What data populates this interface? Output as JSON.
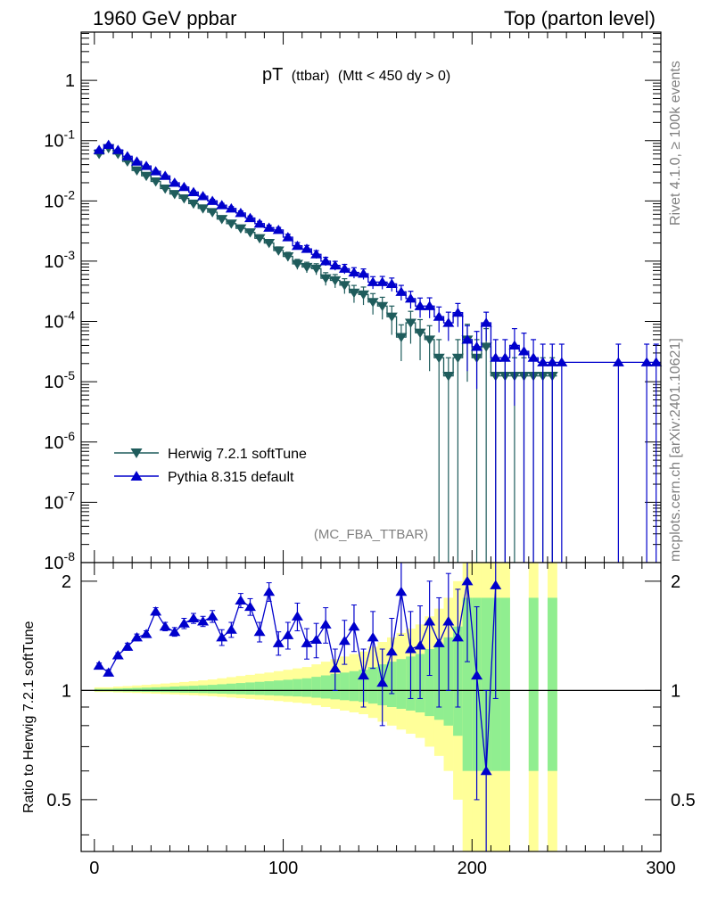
{
  "header": {
    "left": "1960 GeV ppbar",
    "right": "Top (parton level)"
  },
  "side_labels": {
    "rivet": "Rivet 4.1.0, ≥ 100k events",
    "mcplots": "mcplots.cern.ch [arXiv:2401.10621]"
  },
  "chart_data": [
    {
      "type": "line",
      "title": "pT",
      "title_sub": "(ttbar)",
      "title_cut": "(Mtt < 450 dy > 0)",
      "analysis": "(MC_FBA_TTBAR)",
      "xlim": [
        -7,
        300
      ],
      "ylim_log10": [
        -8,
        0.8
      ],
      "y_scale": "log",
      "y_tick_labels": [
        "1",
        "10",
        "10",
        "10",
        "10",
        "10",
        "10",
        "10",
        "10"
      ],
      "y_tick_exponents": [
        "",
        "-1",
        "-2",
        "-3",
        "-4",
        "-5",
        "-6",
        "-7",
        "-8"
      ],
      "legend_position": "middle-left",
      "series": [
        {
          "name": "Herwig 7.2.1 softTune",
          "color": "#1f5c5c",
          "marker": "triangle-down",
          "x": [
            2.5,
            7.5,
            12.5,
            17.5,
            22.5,
            27.5,
            32.5,
            37.5,
            42.5,
            47.5,
            52.5,
            57.5,
            62.5,
            67.5,
            72.5,
            77.5,
            82.5,
            87.5,
            92.5,
            97.5,
            102.5,
            107.5,
            112.5,
            117.5,
            122.5,
            127.5,
            132.5,
            137.5,
            142.5,
            147.5,
            152.5,
            157.5,
            162.5,
            167.5,
            172.5,
            177.5,
            182.5,
            187.5,
            192.5,
            197.5,
            202.5,
            207.5,
            212.5,
            217.5,
            222.5,
            227.5,
            232.5,
            237.5,
            242.5
          ],
          "y": [
            0.06,
            0.075,
            0.06,
            0.045,
            0.032,
            0.026,
            0.021,
            0.016,
            0.013,
            0.011,
            0.009,
            0.0075,
            0.0065,
            0.005,
            0.0042,
            0.0035,
            0.003,
            0.0024,
            0.002,
            0.0015,
            0.0012,
            0.0009,
            0.0008,
            0.00075,
            0.00052,
            0.00048,
            0.0004,
            0.0003,
            0.00028,
            0.00021,
            0.00018,
            0.00012,
            5.5e-05,
            9.5e-05,
            6.5e-05,
            5e-05,
            2.5e-05,
            1.25e-05,
            2.5e-05,
            5e-05,
            2.5e-05,
            3.8e-05,
            1.25e-05,
            1.25e-05,
            1.25e-05,
            1.25e-05,
            1.25e-05,
            1.25e-05,
            1.25e-05
          ],
          "yerr_rel": [
            0.03,
            0.03,
            0.03,
            0.04,
            0.04,
            0.05,
            0.05,
            0.06,
            0.06,
            0.07,
            0.07,
            0.08,
            0.09,
            0.1,
            0.1,
            0.11,
            0.12,
            0.13,
            0.14,
            0.15,
            0.17,
            0.19,
            0.2,
            0.21,
            0.24,
            0.25,
            0.28,
            0.32,
            0.33,
            0.38,
            0.4,
            0.5,
            0.6,
            0.55,
            0.65,
            0.7,
            1,
            1,
            1,
            0.8,
            1,
            1,
            1,
            1,
            1,
            1,
            1,
            1,
            1
          ],
          "line_extends_to": 245
        },
        {
          "name": "Pythia 8.315 default",
          "color": "#0000cc",
          "marker": "triangle-up",
          "x": [
            2.5,
            7.5,
            12.5,
            17.5,
            22.5,
            27.5,
            32.5,
            37.5,
            42.5,
            47.5,
            52.5,
            57.5,
            62.5,
            67.5,
            72.5,
            77.5,
            82.5,
            87.5,
            92.5,
            97.5,
            102.5,
            107.5,
            112.5,
            117.5,
            122.5,
            127.5,
            132.5,
            137.5,
            142.5,
            147.5,
            152.5,
            157.5,
            162.5,
            167.5,
            172.5,
            177.5,
            182.5,
            187.5,
            192.5,
            197.5,
            202.5,
            207.5,
            212.5,
            217.5,
            222.5,
            227.5,
            232.5,
            237.5,
            242.5,
            247.5,
            277.5,
            292.5,
            297.5
          ],
          "y": [
            0.07,
            0.085,
            0.07,
            0.055,
            0.045,
            0.038,
            0.031,
            0.026,
            0.02,
            0.017,
            0.014,
            0.012,
            0.01,
            0.0085,
            0.0075,
            0.0063,
            0.0052,
            0.0042,
            0.0036,
            0.0033,
            0.0025,
            0.0018,
            0.0016,
            0.0013,
            0.001,
            0.00085,
            0.00075,
            0.00065,
            0.00062,
            0.00045,
            0.00045,
            0.00042,
            0.00031,
            0.00024,
            0.00018,
            0.00018,
            0.00012,
            9.5e-05,
            0.00014,
            5e-05,
            3.8e-05,
            9.5e-05,
            2.5e-05,
            2.5e-05,
            4e-05,
            3.2e-05,
            2.5e-05,
            2.1e-05,
            2.1e-05,
            2.1e-05,
            2.1e-05,
            2.1e-05,
            2.1e-05
          ],
          "yerr_rel": [
            0.03,
            0.03,
            0.03,
            0.03,
            0.03,
            0.04,
            0.04,
            0.04,
            0.05,
            0.05,
            0.05,
            0.06,
            0.06,
            0.07,
            0.07,
            0.08,
            0.08,
            0.09,
            0.1,
            0.1,
            0.12,
            0.13,
            0.14,
            0.15,
            0.16,
            0.17,
            0.18,
            0.2,
            0.2,
            0.23,
            0.24,
            0.25,
            0.28,
            0.32,
            0.36,
            0.37,
            0.45,
            0.5,
            0.42,
            0.7,
            0.8,
            0.5,
            1,
            1,
            0.9,
            1,
            1,
            1,
            1,
            1,
            1,
            1,
            1
          ],
          "line_extends_to": 300
        }
      ]
    },
    {
      "type": "line",
      "ylabel": "Ratio to Herwig 7.2.1 softTune",
      "xlim": [
        -7,
        300
      ],
      "ylim": [
        0.36,
        2.25
      ],
      "y_scale": "log",
      "x_ticks": [
        0,
        100,
        200,
        300
      ],
      "y_ticks": [
        0.5,
        1,
        2
      ],
      "y_tick_labels": [
        "0.5",
        "1",
        "2"
      ],
      "reference_line": 1,
      "band_1sigma_color": "#90ee90",
      "band_2sigma_color": "#ffff99",
      "band_x": [
        0,
        5,
        10,
        15,
        20,
        25,
        30,
        35,
        40,
        45,
        50,
        55,
        60,
        65,
        70,
        75,
        80,
        85,
        90,
        95,
        100,
        105,
        110,
        115,
        120,
        125,
        130,
        135,
        140,
        145,
        150,
        155,
        160,
        165,
        170,
        175,
        180,
        185,
        190,
        195,
        200,
        205,
        210,
        215,
        220,
        225,
        230,
        235,
        240,
        245
      ],
      "band_1sigma_rel": [
        0.01,
        0.01,
        0.012,
        0.014,
        0.016,
        0.018,
        0.02,
        0.022,
        0.025,
        0.028,
        0.03,
        0.033,
        0.036,
        0.04,
        0.044,
        0.048,
        0.052,
        0.056,
        0.06,
        0.065,
        0.07,
        0.075,
        0.08,
        0.09,
        0.1,
        0.11,
        0.12,
        0.13,
        0.14,
        0.16,
        0.18,
        0.2,
        0.22,
        0.24,
        0.26,
        0.3,
        0.34,
        0.4,
        0.5,
        0.8,
        0.8,
        0.8,
        0.8,
        0.8,
        0,
        0,
        0.8,
        0,
        0.8,
        0
      ],
      "band_2sigma_rel": [
        0.02,
        0.02,
        0.025,
        0.028,
        0.032,
        0.036,
        0.04,
        0.045,
        0.05,
        0.055,
        0.06,
        0.066,
        0.072,
        0.08,
        0.088,
        0.096,
        0.104,
        0.112,
        0.12,
        0.13,
        0.14,
        0.15,
        0.16,
        0.18,
        0.2,
        0.22,
        0.24,
        0.26,
        0.28,
        0.32,
        0.36,
        0.4,
        0.44,
        0.48,
        0.52,
        0.6,
        0.68,
        0.8,
        1,
        1.6,
        1.6,
        1.6,
        1.6,
        1.6,
        0,
        0,
        1.6,
        0,
        1.6,
        0
      ],
      "series": [
        {
          "name": "Pythia 8.315 default",
          "color": "#0000cc",
          "marker": "triangle-up",
          "x": [
            2.5,
            7.5,
            12.5,
            17.5,
            22.5,
            27.5,
            32.5,
            37.5,
            42.5,
            47.5,
            52.5,
            57.5,
            62.5,
            67.5,
            72.5,
            77.5,
            82.5,
            87.5,
            92.5,
            97.5,
            102.5,
            107.5,
            112.5,
            117.5,
            122.5,
            127.5,
            132.5,
            137.5,
            142.5,
            147.5,
            152.5,
            157.5,
            162.5,
            167.5,
            172.5,
            177.5,
            182.5,
            187.5,
            192.5,
            197.5,
            202.5,
            207.5,
            212.5
          ],
          "y": [
            1.17,
            1.12,
            1.25,
            1.32,
            1.4,
            1.43,
            1.65,
            1.5,
            1.45,
            1.53,
            1.58,
            1.55,
            1.6,
            1.4,
            1.47,
            1.77,
            1.7,
            1.45,
            1.87,
            1.35,
            1.42,
            1.6,
            1.35,
            1.38,
            1.52,
            1.15,
            1.37,
            1.5,
            1.1,
            1.4,
            1.05,
            1.28,
            1.87,
            1.3,
            1.33,
            1.55,
            1.35,
            1.55,
            1.4,
            2.0,
            1.1,
            0.6,
            1.95
          ],
          "yerr": [
            0.02,
            0.02,
            0.02,
            0.03,
            0.03,
            0.03,
            0.04,
            0.04,
            0.04,
            0.05,
            0.05,
            0.05,
            0.06,
            0.07,
            0.07,
            0.08,
            0.09,
            0.09,
            0.11,
            0.1,
            0.12,
            0.14,
            0.13,
            0.15,
            0.17,
            0.15,
            0.19,
            0.22,
            0.2,
            0.25,
            0.25,
            0.3,
            0.45,
            0.35,
            0.38,
            0.45,
            0.45,
            0.55,
            0.5,
            0.8,
            0.6,
            0.4,
            1.0
          ]
        }
      ]
    }
  ],
  "legend": {
    "herwig": "Herwig 7.2.1 softTune",
    "pythia": "Pythia 8.315 default"
  },
  "axes": {
    "ratio_ylabel": "Ratio to Herwig 7.2.1 softTune",
    "ratio_right_labels": [
      "2",
      "1",
      "0.5"
    ]
  }
}
